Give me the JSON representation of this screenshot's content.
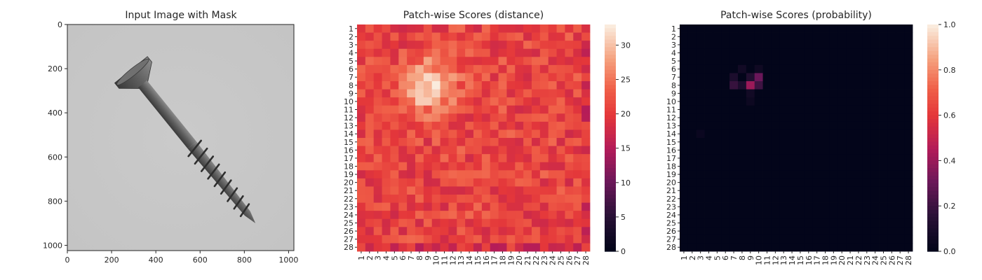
{
  "chart_data": [
    {
      "type": "image",
      "title": "Input Image with Mask",
      "x_ticks": [
        0,
        200,
        400,
        600,
        800,
        1000
      ],
      "y_ticks": [
        0,
        200,
        400,
        600,
        800,
        1000
      ],
      "xlim": [
        0,
        1024
      ],
      "ylim": [
        1024,
        0
      ],
      "image": "grayscale photo of a screw on a light gray background",
      "screw": {
        "head_center": [
          300,
          220
        ],
        "tip": [
          850,
          900
        ],
        "body_color": "#5e5e5e",
        "background_color": "#c4c4c4"
      }
    },
    {
      "type": "heatmap",
      "title": "Patch-wise Scores (distance)",
      "rows": 28,
      "cols": 28,
      "x_tick_labels": [
        "1",
        "2",
        "3",
        "4",
        "5",
        "6",
        "7",
        "8",
        "9",
        "10",
        "11",
        "12",
        "13",
        "14",
        "15",
        "16",
        "17",
        "18",
        "19",
        "20",
        "21",
        "22",
        "23",
        "24",
        "25",
        "26",
        "27",
        "28"
      ],
      "y_tick_labels": [
        "1",
        "2",
        "3",
        "4",
        "5",
        "6",
        "7",
        "8",
        "9",
        "10",
        "11",
        "12",
        "13",
        "14",
        "15",
        "16",
        "17",
        "18",
        "19",
        "20",
        "21",
        "22",
        "23",
        "24",
        "25",
        "26",
        "27",
        "28"
      ],
      "colorbar_ticks": [
        0,
        5,
        10,
        15,
        20,
        25,
        30
      ],
      "vmin": 0,
      "vmax": 33,
      "colormap": "rocket",
      "base_value": 21,
      "hotspot": {
        "center_row": 8,
        "center_col": 9,
        "peak": 32,
        "radius": 2.2
      }
    },
    {
      "type": "heatmap",
      "title": "Patch-wise Scores (probability)",
      "rows": 28,
      "cols": 28,
      "x_tick_labels": [
        "1",
        "2",
        "3",
        "4",
        "5",
        "6",
        "7",
        "8",
        "9",
        "10",
        "11",
        "12",
        "13",
        "14",
        "15",
        "16",
        "17",
        "18",
        "19",
        "20",
        "21",
        "22",
        "23",
        "24",
        "25",
        "26",
        "27",
        "28"
      ],
      "y_tick_labels": [
        "1",
        "2",
        "3",
        "4",
        "5",
        "6",
        "7",
        "8",
        "9",
        "10",
        "11",
        "12",
        "13",
        "14",
        "15",
        "16",
        "17",
        "18",
        "19",
        "20",
        "21",
        "22",
        "23",
        "24",
        "25",
        "26",
        "27",
        "28"
      ],
      "colorbar_ticks": [
        0.0,
        0.2,
        0.4,
        0.6,
        0.8,
        1.0
      ],
      "colorbar_tick_labels": [
        "0.0",
        "0.2",
        "0.4",
        "0.6",
        "0.8",
        "1.0"
      ],
      "vmin": 0,
      "vmax": 1,
      "colormap": "rocket",
      "cells": [
        {
          "row": 7,
          "col": 7,
          "value": 0.1
        },
        {
          "row": 7,
          "col": 9,
          "value": 0.12
        },
        {
          "row": 7,
          "col": 10,
          "value": 0.3
        },
        {
          "row": 8,
          "col": 7,
          "value": 0.18
        },
        {
          "row": 8,
          "col": 8,
          "value": 0.1
        },
        {
          "row": 8,
          "col": 9,
          "value": 0.4
        },
        {
          "row": 8,
          "col": 10,
          "value": 0.2
        },
        {
          "row": 6,
          "col": 8,
          "value": 0.06
        },
        {
          "row": 6,
          "col": 10,
          "value": 0.05
        },
        {
          "row": 9,
          "col": 9,
          "value": 0.06
        },
        {
          "row": 10,
          "col": 9,
          "value": 0.04
        },
        {
          "row": 14,
          "col": 3,
          "value": 0.03
        }
      ]
    }
  ]
}
